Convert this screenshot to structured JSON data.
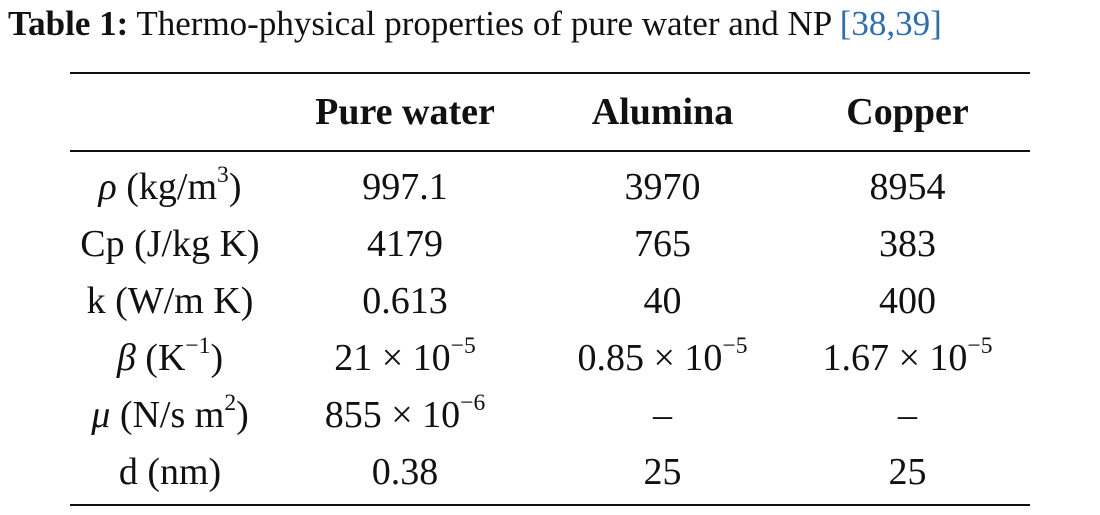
{
  "caption": {
    "label": "Table 1:",
    "text": " Thermo-physical properties of pure water and NP ",
    "ref_open": "[",
    "ref1": "38",
    "ref_sep": ",",
    "ref2": "39",
    "ref_close": "]"
  },
  "table": {
    "headers": [
      "",
      "Pure water",
      "Alumina",
      "Copper"
    ],
    "rows": [
      {
        "property": {
          "symbol": "ρ",
          "unit_pre": " (kg/m",
          "sup": "3",
          "unit_post": ")"
        },
        "values": [
          {
            "base": "997.1",
            "sup": ""
          },
          {
            "base": "3970",
            "sup": ""
          },
          {
            "base": "8954",
            "sup": ""
          }
        ]
      },
      {
        "property": {
          "symbol": "",
          "unit_pre": "Cp (J/kg K)",
          "sup": "",
          "unit_post": ""
        },
        "values": [
          {
            "base": "4179",
            "sup": ""
          },
          {
            "base": "765",
            "sup": ""
          },
          {
            "base": "383",
            "sup": ""
          }
        ]
      },
      {
        "property": {
          "symbol": "",
          "unit_pre": "k (W/m K)",
          "sup": "",
          "unit_post": ""
        },
        "values": [
          {
            "base": "0.613",
            "sup": ""
          },
          {
            "base": "40",
            "sup": ""
          },
          {
            "base": "400",
            "sup": ""
          }
        ]
      },
      {
        "property": {
          "symbol": "β",
          "unit_pre": " (K",
          "sup": "−1",
          "unit_post": ")"
        },
        "values": [
          {
            "base": "21 × 10",
            "sup": "−5"
          },
          {
            "base": "0.85 × 10",
            "sup": "−5"
          },
          {
            "base": "1.67 × 10",
            "sup": "−5"
          }
        ]
      },
      {
        "property": {
          "symbol": "μ",
          "unit_pre": " (N/s m",
          "sup": "2",
          "unit_post": ")"
        },
        "values": [
          {
            "base": "855 × 10",
            "sup": "−6"
          },
          {
            "base": "–",
            "sup": ""
          },
          {
            "base": "–",
            "sup": ""
          }
        ]
      },
      {
        "property": {
          "symbol": "",
          "unit_pre": "d (nm)",
          "sup": "",
          "unit_post": ""
        },
        "values": [
          {
            "base": "0.38",
            "sup": ""
          },
          {
            "base": "25",
            "sup": ""
          },
          {
            "base": "25",
            "sup": ""
          }
        ]
      }
    ]
  },
  "colors": {
    "text": "#111111",
    "reference_link": "#2a6db5"
  }
}
